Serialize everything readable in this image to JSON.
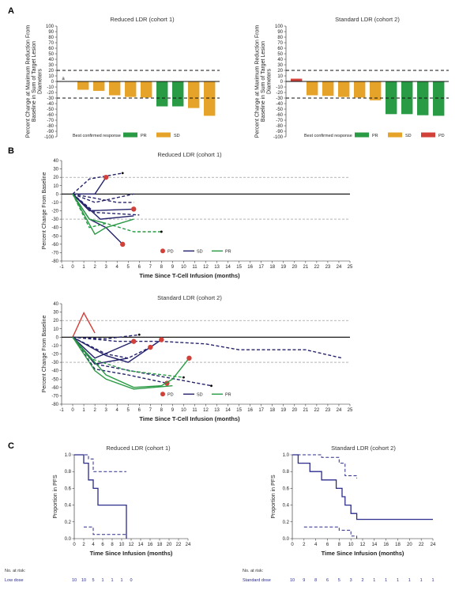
{
  "colors": {
    "pr": "#2a9b45",
    "sd": "#e6a329",
    "pd": "#d2403a",
    "navy": "#25236b",
    "green": "#2a9b45",
    "red": "#d2403a",
    "blue": "#2b2b8c"
  },
  "panel_letters": [
    "A",
    "B",
    "C"
  ],
  "chart_data": [
    {
      "id": "A1",
      "type": "bar",
      "title": "Reduced LDR (cohort 1)",
      "ylabel": "Percent Change at Maximum Reduction From Baseline in Sum of Target Lesion Diameters",
      "ylim": [
        -100,
        100
      ],
      "yticks": [
        100,
        90,
        80,
        70,
        60,
        50,
        40,
        30,
        20,
        10,
        0,
        -10,
        -20,
        -30,
        -40,
        -50,
        -60,
        -70,
        -80,
        -90,
        -100
      ],
      "ref_lines": [
        20,
        -30
      ],
      "values": [
        0,
        -15,
        -17,
        -25,
        -28,
        -29,
        -45,
        -45,
        -48,
        -62
      ],
      "responses": [
        "PD",
        "SD",
        "SD",
        "SD",
        "SD",
        "SD",
        "PR",
        "PR",
        "SD",
        "SD"
      ],
      "annotation": "a",
      "legend_title": "Best confirmed response",
      "legend": [
        "PR",
        "SD"
      ]
    },
    {
      "id": "A2",
      "type": "bar",
      "title": "Standard LDR (cohort 2)",
      "ylabel": "Percent Change at Maximum Reduction From Baseline in Sum of Target Lesion Diameters",
      "ylim": [
        -100,
        100
      ],
      "yticks": [
        100,
        90,
        80,
        70,
        60,
        50,
        40,
        30,
        20,
        10,
        0,
        -10,
        -20,
        -30,
        -40,
        -50,
        -60,
        -70,
        -80,
        -90,
        -100
      ],
      "ref_lines": [
        20,
        -30
      ],
      "values": [
        5,
        -25,
        -26,
        -28,
        -29,
        -34,
        -59,
        -59,
        -61,
        -62
      ],
      "responses": [
        "PD",
        "SD",
        "SD",
        "SD",
        "SD",
        "SD",
        "PR",
        "PR",
        "PR",
        "PR"
      ],
      "legend_title": "Best confirmed response",
      "legend": [
        "PR",
        "SD",
        "PD"
      ]
    },
    {
      "id": "B1",
      "type": "line",
      "title": "Reduced LDR (cohort 1)",
      "ylabel": "Percent Change From Baseline",
      "xlabel": "Time Since T-Cell Infusion (months)",
      "xlim": [
        -1,
        25
      ],
      "ylim": [
        -80,
        40
      ],
      "xticks": [
        -1,
        0,
        1,
        2,
        3,
        4,
        5,
        6,
        7,
        8,
        9,
        10,
        11,
        12,
        13,
        14,
        15,
        16,
        17,
        18,
        19,
        20,
        21,
        22,
        23,
        24,
        25
      ],
      "yticks": [
        40,
        30,
        20,
        10,
        0,
        -10,
        -20,
        -30,
        -40,
        -50,
        -60,
        -70,
        -80
      ],
      "ref_lines": [
        20,
        -30
      ],
      "legend": [
        "PD",
        "SD",
        "PR"
      ],
      "series": [
        {
          "response": "SD",
          "dash": true,
          "points": [
            [
              0,
              0
            ],
            [
              1.5,
              18
            ],
            [
              4.5,
              25
            ]
          ],
          "end": "dot"
        },
        {
          "response": "SD",
          "dash": false,
          "points": [
            [
              0,
              0
            ],
            [
              2,
              0
            ],
            [
              3,
              20
            ]
          ],
          "end": "pd"
        },
        {
          "response": "SD",
          "dash": true,
          "points": [
            [
              0,
              0
            ],
            [
              2,
              -10
            ],
            [
              5.5,
              0
            ]
          ],
          "end": "none"
        },
        {
          "response": "SD",
          "dash": true,
          "points": [
            [
              0,
              0
            ],
            [
              2,
              -5
            ],
            [
              4,
              -10
            ],
            [
              5.5,
              -10
            ]
          ],
          "end": "none"
        },
        {
          "response": "SD",
          "dash": false,
          "points": [
            [
              0,
              0
            ],
            [
              1.5,
              -20
            ],
            [
              5.5,
              -18
            ]
          ],
          "end": "pd"
        },
        {
          "response": "SD",
          "dash": true,
          "points": [
            [
              0,
              0
            ],
            [
              2,
              -22
            ],
            [
              6,
              -25
            ]
          ],
          "end": "none"
        },
        {
          "response": "SD",
          "dash": false,
          "points": [
            [
              0,
              0
            ],
            [
              2.5,
              -30
            ],
            [
              5.5,
              -26
            ]
          ],
          "end": "none"
        },
        {
          "response": "SD",
          "dash": false,
          "points": [
            [
              0,
              0
            ],
            [
              1.5,
              -30
            ],
            [
              3,
              -40
            ],
            [
              4.5,
              -60
            ]
          ],
          "end": "pd"
        },
        {
          "response": "PR",
          "dash": false,
          "points": [
            [
              0,
              0
            ],
            [
              1.5,
              -30
            ],
            [
              3,
              -35
            ]
          ],
          "end": "none"
        },
        {
          "response": "PR",
          "dash": true,
          "points": [
            [
              0,
              0
            ],
            [
              1.5,
              -40
            ],
            [
              3,
              -35
            ],
            [
              5.5,
              -45
            ],
            [
              8,
              -45
            ]
          ],
          "end": "dot"
        },
        {
          "response": "PR",
          "dash": false,
          "points": [
            [
              0,
              0
            ],
            [
              2,
              -48
            ],
            [
              3,
              -40
            ],
            [
              5.5,
              -30
            ]
          ],
          "end": "none"
        }
      ]
    },
    {
      "id": "B2",
      "type": "line",
      "title": "Standard LDR (cohort 2)",
      "ylabel": "Percent Change From Baseline",
      "xlabel": "Time Since T-Cell Infusion (months)",
      "xlim": [
        -1,
        25
      ],
      "ylim": [
        -80,
        40
      ],
      "xticks": [
        -1,
        0,
        1,
        2,
        3,
        4,
        5,
        6,
        7,
        8,
        9,
        10,
        11,
        12,
        13,
        14,
        15,
        16,
        17,
        18,
        19,
        20,
        21,
        22,
        23,
        24,
        25
      ],
      "yticks": [
        40,
        30,
        20,
        10,
        0,
        -10,
        -20,
        -30,
        -40,
        -50,
        -60,
        -70,
        -80
      ],
      "ref_lines": [
        20,
        -30
      ],
      "legend": [
        "PD",
        "SD",
        "PR"
      ],
      "series": [
        {
          "response": "PD",
          "dash": false,
          "points": [
            [
              0,
              0
            ],
            [
              1,
              29
            ],
            [
              2,
              5
            ]
          ],
          "end": "none"
        },
        {
          "response": "SD",
          "dash": true,
          "points": [
            [
              0,
              0
            ],
            [
              3,
              -2
            ],
            [
              6,
              3
            ]
          ],
          "end": "dot"
        },
        {
          "response": "SD",
          "dash": true,
          "points": [
            [
              0,
              0
            ],
            [
              4,
              -5
            ],
            [
              8,
              -5
            ],
            [
              12,
              -8
            ],
            [
              15,
              -15
            ],
            [
              18,
              -15
            ],
            [
              21,
              -15
            ],
            [
              24.3,
              -25
            ]
          ],
          "end": "none"
        },
        {
          "response": "SD",
          "dash": false,
          "points": [
            [
              0,
              0
            ],
            [
              2,
              -25
            ],
            [
              5.5,
              -5
            ]
          ],
          "end": "pd"
        },
        {
          "response": "SD",
          "dash": false,
          "points": [
            [
              0,
              0
            ],
            [
              3,
              -22
            ],
            [
              5,
              -30
            ],
            [
              8,
              -3
            ]
          ],
          "end": "pd"
        },
        {
          "response": "SD",
          "dash": true,
          "points": [
            [
              0,
              0
            ],
            [
              3,
              -20
            ],
            [
              5,
              -25
            ],
            [
              7,
              -12
            ]
          ],
          "end": "pd"
        },
        {
          "response": "SD",
          "dash": false,
          "points": [
            [
              0,
              0
            ],
            [
              2,
              -32
            ],
            [
              5,
              -25
            ]
          ],
          "end": "none"
        },
        {
          "response": "SD",
          "dash": true,
          "points": [
            [
              0,
              0
            ],
            [
              2,
              -38
            ],
            [
              5,
              -45
            ],
            [
              8.5,
              -55
            ]
          ],
          "end": "pd"
        },
        {
          "response": "SD",
          "dash": true,
          "points": [
            [
              0,
              0
            ],
            [
              2,
              -32
            ],
            [
              6,
              -42
            ],
            [
              12.5,
              -58
            ]
          ],
          "end": "dot"
        },
        {
          "response": "PR",
          "dash": false,
          "points": [
            [
              0,
              0
            ],
            [
              2,
              -30
            ],
            [
              3,
              -45
            ],
            [
              5.5,
              -60
            ],
            [
              8,
              -58
            ],
            [
              9,
              -50
            ],
            [
              10.5,
              -25
            ]
          ],
          "end": "pd"
        },
        {
          "response": "PR",
          "dash": false,
          "points": [
            [
              0,
              0
            ],
            [
              2,
              -40
            ],
            [
              3,
              -50
            ],
            [
              5.5,
              -62
            ],
            [
              9,
              -58
            ]
          ],
          "end": "none"
        },
        {
          "response": "PR",
          "dash": true,
          "points": [
            [
              0,
              0
            ],
            [
              1.5,
              -25
            ],
            [
              5,
              -40
            ],
            [
              10,
              -48
            ]
          ],
          "end": "dot"
        }
      ]
    },
    {
      "id": "C1",
      "type": "line",
      "subtype": "kaplan-meier",
      "title": "Reduced LDR (cohort 1)",
      "ylabel": "Proportion in PFS",
      "xlabel": "Time Since Infusion (months)",
      "xlim": [
        0,
        24
      ],
      "ylim": [
        0,
        1
      ],
      "xticks": [
        0,
        2,
        4,
        6,
        8,
        10,
        12,
        14,
        16,
        18,
        20,
        22,
        24
      ],
      "yticks": [
        "1.0",
        "0.8",
        "0.6",
        "0.4",
        "0.2",
        "0.0"
      ],
      "estimate": [
        [
          0,
          1
        ],
        [
          2,
          1
        ],
        [
          2,
          0.9
        ],
        [
          3,
          0.9
        ],
        [
          3,
          0.7
        ],
        [
          4,
          0.7
        ],
        [
          4,
          0.6
        ],
        [
          5,
          0.6
        ],
        [
          5,
          0.4
        ],
        [
          11,
          0.4
        ],
        [
          11,
          0
        ]
      ],
      "ci_upper": [
        [
          0,
          1
        ],
        [
          3,
          1
        ],
        [
          3,
          0.95
        ],
        [
          4,
          0.95
        ],
        [
          4,
          0.8
        ],
        [
          11,
          0.8
        ]
      ],
      "ci_lower": [
        [
          2,
          0.14
        ],
        [
          4,
          0.14
        ],
        [
          4,
          0.05
        ],
        [
          11,
          0.05
        ]
      ],
      "risk_header": "No. at risk:",
      "risk_label": "Low dose",
      "risk_numbers": [
        "10",
        "10",
        "5",
        "1",
        "1",
        "1",
        "0"
      ]
    },
    {
      "id": "C2",
      "type": "line",
      "subtype": "kaplan-meier",
      "title": "Standard LDR (cohort 2)",
      "ylabel": "Proportion in PFS",
      "xlabel": "Time Since Infusion (months)",
      "xlim": [
        0,
        24
      ],
      "ylim": [
        0,
        1
      ],
      "xticks": [
        0,
        2,
        4,
        6,
        8,
        10,
        12,
        14,
        16,
        18,
        20,
        22,
        24
      ],
      "yticks": [
        "1.0",
        "0.8",
        "0.6",
        "0.4",
        "0.2",
        "0.0"
      ],
      "estimate": [
        [
          0,
          1
        ],
        [
          1,
          1
        ],
        [
          1,
          0.9
        ],
        [
          3,
          0.9
        ],
        [
          3,
          0.8
        ],
        [
          5,
          0.8
        ],
        [
          5,
          0.7
        ],
        [
          7.5,
          0.7
        ],
        [
          7.5,
          0.6
        ],
        [
          8.5,
          0.6
        ],
        [
          8.5,
          0.5
        ],
        [
          9,
          0.5
        ],
        [
          9,
          0.4
        ],
        [
          10,
          0.4
        ],
        [
          10,
          0.3
        ],
        [
          11,
          0.3
        ],
        [
          11,
          0.23
        ],
        [
          24,
          0.23
        ]
      ],
      "ci_upper": [
        [
          0,
          1
        ],
        [
          5,
          1
        ],
        [
          5,
          0.97
        ],
        [
          8,
          0.97
        ],
        [
          8,
          0.9
        ],
        [
          9,
          0.9
        ],
        [
          9,
          0.75
        ],
        [
          11,
          0.75
        ],
        [
          11,
          0.72
        ]
      ],
      "ci_lower": [
        [
          2,
          0.14
        ],
        [
          8,
          0.14
        ],
        [
          8,
          0.1
        ],
        [
          10,
          0.1
        ],
        [
          10,
          0.03
        ],
        [
          11,
          0.03
        ],
        [
          11,
          0
        ]
      ],
      "risk_header": "No. at risk:",
      "risk_label": "Standard dose",
      "risk_numbers": [
        "10",
        "9",
        "8",
        "6",
        "5",
        "3",
        "2",
        "1",
        "1",
        "1",
        "1",
        "1",
        "1"
      ]
    }
  ]
}
